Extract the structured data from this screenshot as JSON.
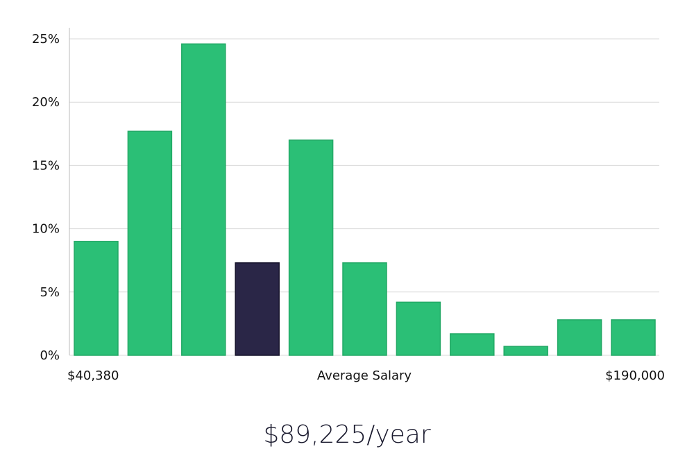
{
  "chart_data": {
    "type": "bar",
    "y_unit": "%",
    "ylim": [
      0,
      26
    ],
    "y_ticks": [
      0,
      5,
      10,
      15,
      20,
      25
    ],
    "y_tick_labels": [
      "0%",
      "5%",
      "10%",
      "15%",
      "20%",
      "25%"
    ],
    "grid": true,
    "bars": [
      {
        "value": 9.0,
        "highlight": false
      },
      {
        "value": 17.7,
        "highlight": false
      },
      {
        "value": 24.6,
        "highlight": false
      },
      {
        "value": 7.3,
        "highlight": true
      },
      {
        "value": 17.0,
        "highlight": false
      },
      {
        "value": 7.3,
        "highlight": false
      },
      {
        "value": 4.2,
        "highlight": false
      },
      {
        "value": 1.7,
        "highlight": false
      },
      {
        "value": 0.7,
        "highlight": false
      },
      {
        "value": 2.8,
        "highlight": false
      },
      {
        "value": 2.8,
        "highlight": false
      }
    ],
    "x_left_label": "$40,380",
    "x_center_label": "Average Salary",
    "x_right_label": "$190,000",
    "colors": {
      "bar": "#2bbf76",
      "bar_edge": "#22a865",
      "highlight": "#2a2647",
      "highlight_edge": "#14122a",
      "grid": "#d9d9d9",
      "axis": "#bbbbbb"
    }
  },
  "summary": {
    "average_salary_text": "$89,225/year"
  }
}
